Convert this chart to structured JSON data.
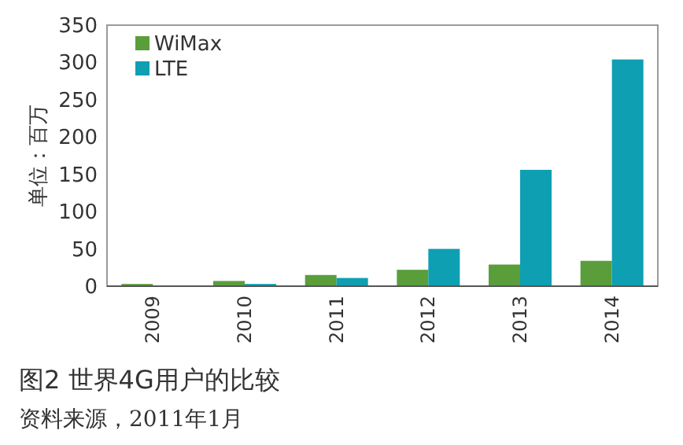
{
  "chart_data": {
    "type": "bar",
    "title": "图2  世界4G用户的比较",
    "ylabel": "单位：百万",
    "annotations": [
      "资料来源，2011年1月"
    ],
    "categories": [
      "2009",
      "2010",
      "2011",
      "2012",
      "2013",
      "2014"
    ],
    "series": [
      {
        "name": "WiMax",
        "color": "#5a9e3c",
        "values": [
          3,
          7,
          15,
          22,
          29,
          34
        ]
      },
      {
        "name": "LTE",
        "color": "#0e9fb3",
        "values": [
          0,
          3,
          11,
          50,
          156,
          304
        ]
      }
    ],
    "ylim": [
      0,
      350
    ],
    "yticks": [
      0,
      50,
      100,
      150,
      200,
      250,
      300,
      350
    ],
    "legend": "top left",
    "grid": false
  }
}
